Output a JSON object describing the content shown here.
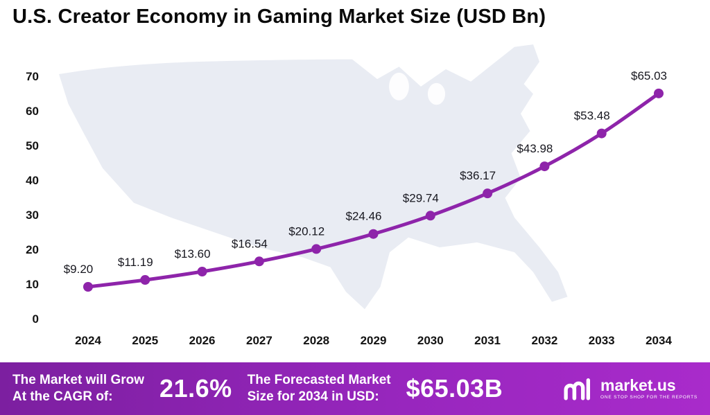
{
  "title": "U.S. Creator Economy in Gaming Market Size (USD Bn)",
  "chart_data": {
    "type": "line",
    "title": "U.S. Creator Economy in Gaming Market Size (USD Bn)",
    "x": [
      2024,
      2025,
      2026,
      2027,
      2028,
      2029,
      2030,
      2031,
      2032,
      2033,
      2034
    ],
    "values": [
      9.2,
      11.19,
      13.6,
      16.54,
      20.12,
      24.46,
      29.74,
      36.17,
      43.98,
      53.48,
      65.03
    ],
    "labels": [
      "$9.20",
      "$11.19",
      "$13.60",
      "$16.54",
      "$20.12",
      "$24.46",
      "$29.74",
      "$36.17",
      "$43.98",
      "$53.48",
      "$65.03"
    ],
    "xlabel": "",
    "ylabel": "",
    "ylim": [
      0,
      70
    ],
    "ytick_step": 10,
    "grid": false,
    "legend": "none",
    "line_color": "#8e24aa",
    "marker_color": "#8e24aa",
    "background_map_color": "#e9ecf3"
  },
  "footer": {
    "cagr_label_line1": "The Market will Grow",
    "cagr_label_line2": "At the CAGR of:",
    "cagr_value": "21.6%",
    "forecast_label_line1": "The Forecasted Market",
    "forecast_label_line2": "Size for 2034 in USD:",
    "forecast_value": "$65.03B",
    "brand": "market.us",
    "tagline": "ONE STOP SHOP FOR THE REPORTS",
    "bar_color_left": "#7c1fa0",
    "bar_color_right": "#a92bcb"
  }
}
